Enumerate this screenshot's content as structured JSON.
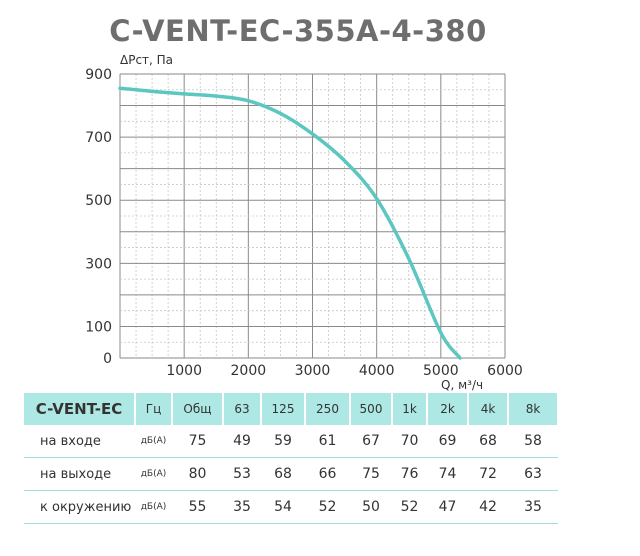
{
  "chart_data": {
    "type": "line",
    "title": "C-VENT-EC-355A-4-380",
    "ylabel": "ΔPст, Па",
    "xlabel": "Q, м³/ч",
    "xlim": [
      0,
      6000
    ],
    "ylim": [
      0,
      900
    ],
    "xticks": [
      1000,
      2000,
      3000,
      4000,
      5000,
      6000
    ],
    "yticks": [
      0,
      100,
      300,
      500,
      700,
      900
    ],
    "grid": true,
    "line_color": "#5cc6c0",
    "series": [
      {
        "x": [
          0,
          500,
          1000,
          1500,
          2000,
          2500,
          3000,
          3500,
          4000,
          4500,
          5000,
          5300
        ],
        "y": [
          855,
          845,
          837,
          830,
          815,
          775,
          710,
          625,
          505,
          315,
          80,
          0
        ]
      }
    ]
  },
  "table": {
    "header": [
      "C-VENT-EC",
      "Гц",
      "Общ",
      "63",
      "125",
      "250",
      "500",
      "1k",
      "2k",
      "4k",
      "8k"
    ],
    "rows": [
      {
        "label": "на входе",
        "unit": "дБ(А)",
        "values": [
          "75",
          "49",
          "59",
          "61",
          "67",
          "70",
          "69",
          "68",
          "58"
        ]
      },
      {
        "label": "на выходе",
        "unit": "дБ(А)",
        "values": [
          "80",
          "53",
          "68",
          "66",
          "75",
          "76",
          "74",
          "72",
          "63"
        ]
      },
      {
        "label": "к окружению",
        "unit": "дБ(А)",
        "values": [
          "55",
          "35",
          "54",
          "52",
          "50",
          "52",
          "47",
          "42",
          "35"
        ]
      }
    ],
    "header_color": "#aee8e4"
  }
}
